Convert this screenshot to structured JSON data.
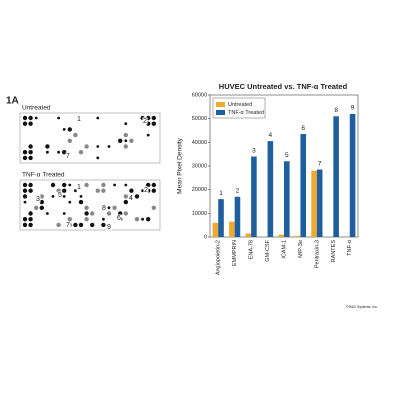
{
  "panel_label": "1A",
  "blots": [
    {
      "title": "Untreated",
      "labels": [
        "1",
        "2",
        "7"
      ]
    },
    {
      "title": "TNF-α Treated",
      "labels": [
        "3",
        "5",
        "1",
        "4",
        "2",
        "8",
        "6",
        "9",
        "7"
      ]
    }
  ],
  "copyright": "©R&D Systems, Inc.",
  "chart_data": {
    "type": "bar",
    "title": "HUVEC Untreated vs. TNF-α Treated",
    "y_label": "Mean Pixel Density",
    "categories": [
      "Angiopoietin-2",
      "EMMPRIN",
      "ENA-78",
      "GM-CSF",
      "ICAM-1",
      "MIP-3α",
      "Pentraxin-3",
      "RANTES",
      "TNF-α"
    ],
    "series": [
      {
        "name": "Untreated",
        "color": "#f0a830",
        "values": [
          6000,
          6500,
          1500,
          0,
          1000,
          500,
          28000,
          0,
          0
        ]
      },
      {
        "name": "TNF-α Treated",
        "color": "#1f5fa0",
        "values": [
          16000,
          17000,
          34000,
          40500,
          32000,
          43500,
          28500,
          51000,
          52000
        ]
      }
    ],
    "annotations": [
      "1",
      "2",
      "3",
      "4",
      "5",
      "6",
      "7",
      "8",
      "9"
    ],
    "ylim": [
      0,
      60000
    ],
    "yticks": [
      0,
      10000,
      20000,
      30000,
      40000,
      50000,
      60000
    ],
    "legend": "top-left"
  }
}
